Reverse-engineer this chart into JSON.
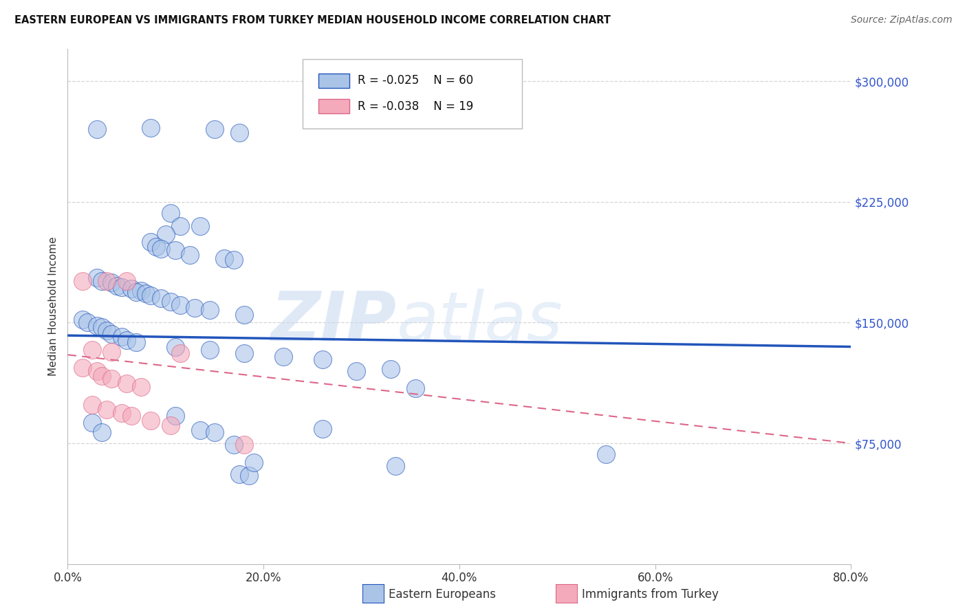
{
  "title": "EASTERN EUROPEAN VS IMMIGRANTS FROM TURKEY MEDIAN HOUSEHOLD INCOME CORRELATION CHART",
  "source": "Source: ZipAtlas.com",
  "ylabel": "Median Household Income",
  "ytick_labels": [
    "$75,000",
    "$150,000",
    "$225,000",
    "$300,000"
  ],
  "ytick_values": [
    75000,
    150000,
    225000,
    300000
  ],
  "watermark_zip": "ZIP",
  "watermark_atlas": "atlas",
  "legend_blue_r": "R = -0.025",
  "legend_blue_n": "N = 60",
  "legend_pink_r": "R = -0.038",
  "legend_pink_n": "N = 19",
  "blue_color": "#aac4e8",
  "pink_color": "#f4aabb",
  "trendline_blue_color": "#2255bb",
  "trendline_pink_color": "#dd6688",
  "background_color": "#ffffff",
  "grid_color": "#cccccc",
  "blue_scatter": [
    [
      3.0,
      270000
    ],
    [
      8.5,
      271000
    ],
    [
      15.0,
      270000
    ],
    [
      17.5,
      268000
    ],
    [
      10.5,
      218000
    ],
    [
      11.5,
      210000
    ],
    [
      13.5,
      210000
    ],
    [
      10.0,
      205000
    ],
    [
      8.5,
      200000
    ],
    [
      9.0,
      197000
    ],
    [
      9.5,
      196000
    ],
    [
      11.0,
      195000
    ],
    [
      12.5,
      192000
    ],
    [
      16.0,
      190000
    ],
    [
      17.0,
      189000
    ],
    [
      3.0,
      178000
    ],
    [
      3.5,
      176000
    ],
    [
      4.5,
      175000
    ],
    [
      5.0,
      173000
    ],
    [
      5.5,
      172000
    ],
    [
      6.5,
      171000
    ],
    [
      7.5,
      170000
    ],
    [
      7.0,
      169000
    ],
    [
      8.0,
      168000
    ],
    [
      8.5,
      167000
    ],
    [
      9.5,
      165000
    ],
    [
      10.5,
      163000
    ],
    [
      11.5,
      161000
    ],
    [
      13.0,
      159000
    ],
    [
      14.5,
      158000
    ],
    [
      18.0,
      155000
    ],
    [
      1.5,
      152000
    ],
    [
      2.0,
      150000
    ],
    [
      3.0,
      148000
    ],
    [
      3.5,
      147000
    ],
    [
      4.0,
      145000
    ],
    [
      4.5,
      143000
    ],
    [
      5.5,
      141000
    ],
    [
      6.0,
      139000
    ],
    [
      7.0,
      138000
    ],
    [
      11.0,
      135000
    ],
    [
      14.5,
      133000
    ],
    [
      18.0,
      131000
    ],
    [
      22.0,
      129000
    ],
    [
      26.0,
      127000
    ],
    [
      29.5,
      120000
    ],
    [
      33.0,
      121000
    ],
    [
      35.5,
      109000
    ],
    [
      11.0,
      92000
    ],
    [
      13.5,
      83000
    ],
    [
      15.0,
      82000
    ],
    [
      17.0,
      74000
    ],
    [
      17.5,
      56000
    ],
    [
      18.5,
      55000
    ],
    [
      19.0,
      63000
    ],
    [
      33.5,
      61000
    ],
    [
      2.5,
      88000
    ],
    [
      3.5,
      82000
    ],
    [
      26.0,
      84000
    ],
    [
      55.0,
      68000
    ]
  ],
  "pink_scatter": [
    [
      1.5,
      176000
    ],
    [
      4.0,
      176000
    ],
    [
      6.0,
      176000
    ],
    [
      2.5,
      133000
    ],
    [
      4.5,
      132000
    ],
    [
      11.5,
      131000
    ],
    [
      1.5,
      122000
    ],
    [
      3.0,
      120000
    ],
    [
      3.5,
      117000
    ],
    [
      4.5,
      115000
    ],
    [
      6.0,
      112000
    ],
    [
      7.5,
      110000
    ],
    [
      2.5,
      99000
    ],
    [
      4.0,
      96000
    ],
    [
      5.5,
      94000
    ],
    [
      6.5,
      92000
    ],
    [
      8.5,
      89000
    ],
    [
      10.5,
      86000
    ],
    [
      18.0,
      74000
    ]
  ],
  "xmin": 0,
  "xmax": 80,
  "ymin": 0,
  "ymax": 320000,
  "xtick_positions": [
    0,
    20,
    40,
    60,
    80
  ],
  "xtick_labels": [
    "0.0%",
    "20.0%",
    "40.0%",
    "60.0%",
    "80.0%"
  ],
  "blue_trend_x": [
    0,
    80
  ],
  "blue_trend_y": [
    142000,
    135000
  ],
  "pink_trend_x": [
    0,
    80
  ],
  "pink_trend_y": [
    130000,
    75000
  ]
}
